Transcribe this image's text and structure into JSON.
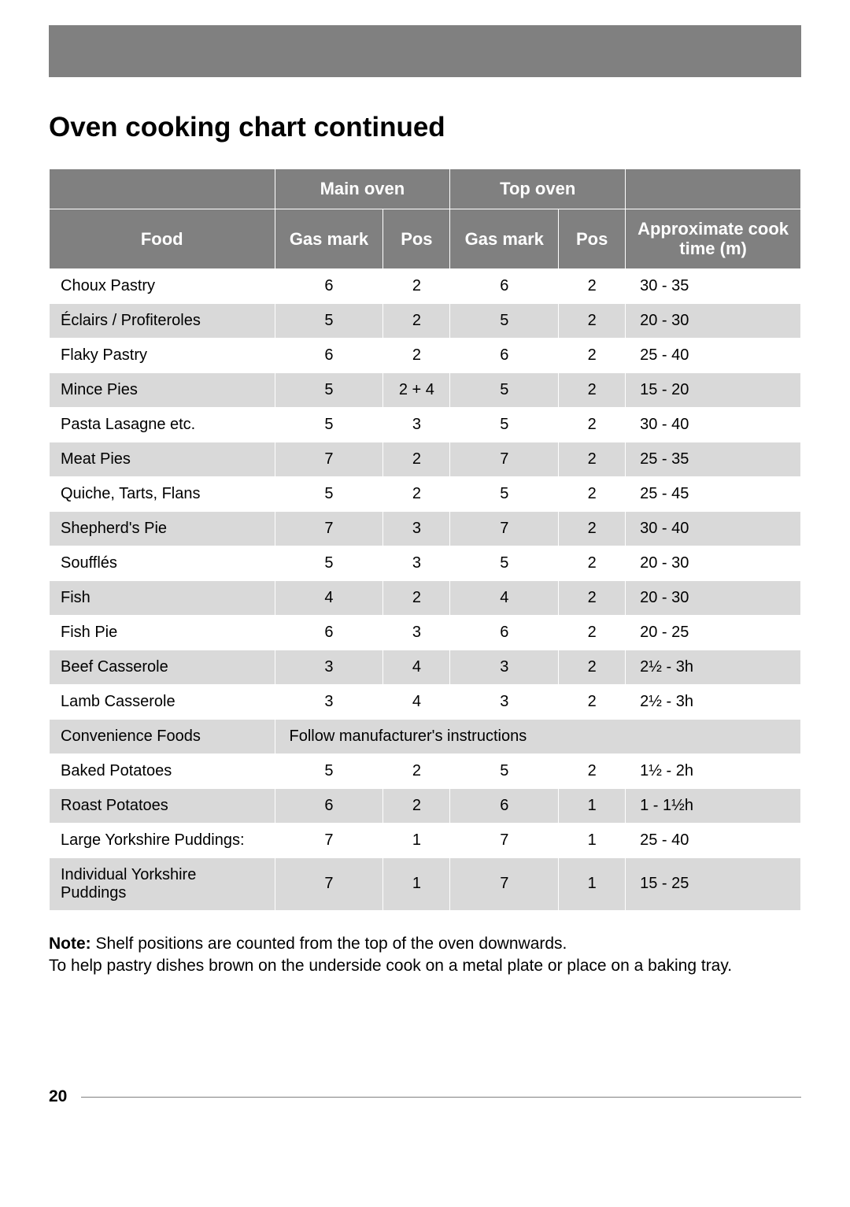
{
  "colors": {
    "banner_bg": "#808080",
    "header_bg": "#808080",
    "header_text": "#ffffff",
    "row_odd_bg": "#ffffff",
    "row_even_bg": "#d9d9d9",
    "text": "#000000",
    "rule": "#808080",
    "page_bg": "#ffffff"
  },
  "typography": {
    "title_fontsize": 35,
    "header_fontsize": 22,
    "cell_fontsize": 20,
    "note_fontsize": 21,
    "footer_fontsize": 21,
    "font_family": "Arial"
  },
  "title": "Oven cooking chart continued",
  "table": {
    "column_widths_pct": [
      27,
      13,
      8,
      13,
      8,
      21
    ],
    "group_headers": {
      "main_oven": "Main oven",
      "top_oven": "Top oven"
    },
    "sub_headers": {
      "food": "Food",
      "gas_mark": "Gas mark",
      "pos": "Pos",
      "approx_time": "Approximate cook time (m)"
    },
    "rows": [
      {
        "food": "Choux Pastry",
        "main_gas": "6",
        "main_pos": "2",
        "top_gas": "6",
        "top_pos": "2",
        "time": "30 - 35"
      },
      {
        "food": "Éclairs / Profiteroles",
        "main_gas": "5",
        "main_pos": "2",
        "top_gas": "5",
        "top_pos": "2",
        "time": "20 - 30"
      },
      {
        "food": "Flaky Pastry",
        "main_gas": "6",
        "main_pos": "2",
        "top_gas": "6",
        "top_pos": "2",
        "time": "25 - 40"
      },
      {
        "food": "Mince Pies",
        "main_gas": "5",
        "main_pos": "2 + 4",
        "top_gas": "5",
        "top_pos": "2",
        "time": "15 - 20"
      },
      {
        "food": "Pasta Lasagne etc.",
        "main_gas": "5",
        "main_pos": "3",
        "top_gas": "5",
        "top_pos": "2",
        "time": "30 - 40"
      },
      {
        "food": "Meat Pies",
        "main_gas": "7",
        "main_pos": "2",
        "top_gas": "7",
        "top_pos": "2",
        "time": "25 - 35"
      },
      {
        "food": "Quiche, Tarts, Flans",
        "main_gas": "5",
        "main_pos": "2",
        "top_gas": "5",
        "top_pos": "2",
        "time": "25 - 45"
      },
      {
        "food": "Shepherd's Pie",
        "main_gas": "7",
        "main_pos": "3",
        "top_gas": "7",
        "top_pos": "2",
        "time": "30 - 40"
      },
      {
        "food": "Soufflés",
        "main_gas": "5",
        "main_pos": "3",
        "top_gas": "5",
        "top_pos": "2",
        "time": "20 - 30"
      },
      {
        "food": "Fish",
        "main_gas": "4",
        "main_pos": "2",
        "top_gas": "4",
        "top_pos": "2",
        "time": "20 - 30"
      },
      {
        "food": "Fish Pie",
        "main_gas": "6",
        "main_pos": "3",
        "top_gas": "6",
        "top_pos": "2",
        "time": "20 - 25"
      },
      {
        "food": "Beef Casserole",
        "main_gas": "3",
        "main_pos": "4",
        "top_gas": "3",
        "top_pos": "2",
        "time": "2½ - 3h"
      },
      {
        "food": "Lamb Casserole",
        "main_gas": "3",
        "main_pos": "4",
        "top_gas": "3",
        "top_pos": "2",
        "time": "2½ - 3h"
      },
      {
        "food": "Convenience Foods",
        "span_note": "Follow manufacturer's instructions"
      },
      {
        "food": "Baked Potatoes",
        "main_gas": "5",
        "main_pos": "2",
        "top_gas": "5",
        "top_pos": "2",
        "time": "1½ - 2h"
      },
      {
        "food": "Roast Potatoes",
        "main_gas": "6",
        "main_pos": "2",
        "top_gas": "6",
        "top_pos": "1",
        "time": "1 - 1½h"
      },
      {
        "food": "Large Yorkshire Puddings:",
        "main_gas": "7",
        "main_pos": "1",
        "top_gas": "7",
        "top_pos": "1",
        "time": "25 - 40"
      },
      {
        "food": "Individual Yorkshire Puddings",
        "main_gas": "7",
        "main_pos": "1",
        "top_gas": "7",
        "top_pos": "1",
        "time": "15 - 25"
      }
    ]
  },
  "notes": {
    "label": "Note",
    "line1": "Shelf positions are counted from the top of the oven downwards.",
    "line2": "To help pastry dishes brown on the underside cook on a metal plate or place on a baking tray."
  },
  "footer": {
    "page_number": "20"
  }
}
